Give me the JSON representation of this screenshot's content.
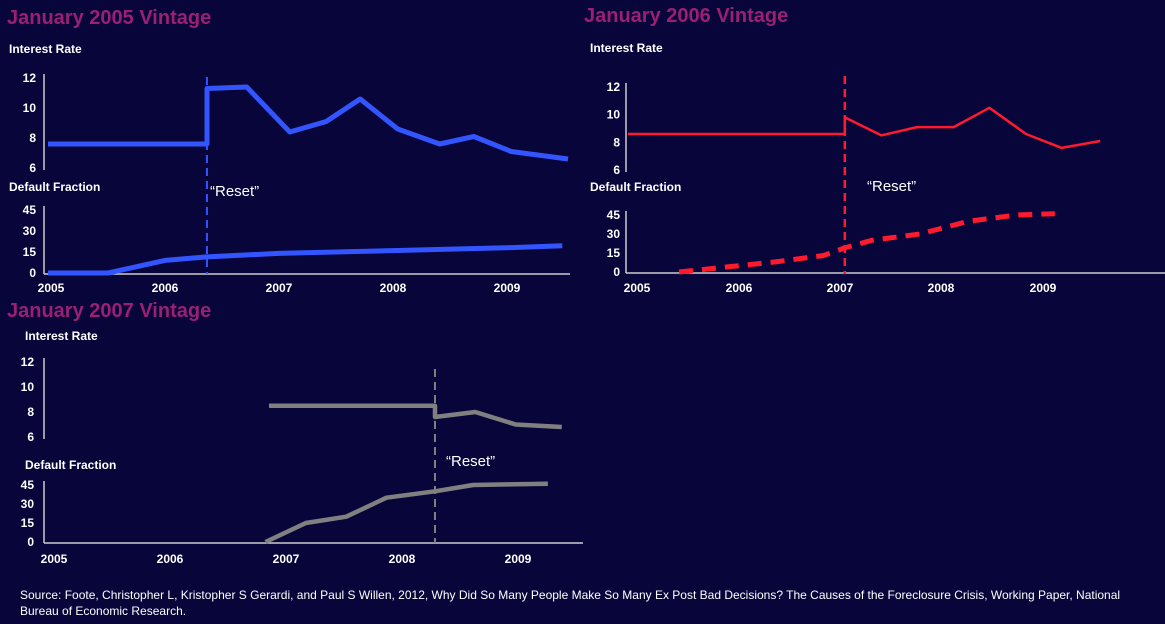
{
  "colors": {
    "background": "#07053a",
    "title": "#9b1f73",
    "c2005": "#3355ff",
    "c2006": "#ff1a2e",
    "c2007": "#808080"
  },
  "chart_data": [
    {
      "type": "line",
      "title": "January 2005 Vintage",
      "rate_label": "Interest Rate",
      "default_label": "Default Fraction",
      "annotation": "“Reset”",
      "reset_x": 2006.37,
      "x_ticks": [
        "2005",
        "2006",
        "2007",
        "2008",
        "2009"
      ],
      "rate_ticks": [
        "6",
        "8",
        "10",
        "12"
      ],
      "default_ticks": [
        "0",
        "15",
        "30",
        "45"
      ],
      "xlim": [
        2004.97,
        2009.55
      ],
      "rate_ylim": [
        6,
        12
      ],
      "default_ylim": [
        0,
        45
      ],
      "series": [
        {
          "name": "Interest Rate",
          "x": [
            2004.97,
            2006.37,
            2006.37,
            2006.72,
            2007.1,
            2007.42,
            2007.72,
            2008.05,
            2008.42,
            2008.72,
            2009.05,
            2009.55
          ],
          "y": [
            7.6,
            7.6,
            11.3,
            11.4,
            8.4,
            9.1,
            10.6,
            8.6,
            7.6,
            8.1,
            7.1,
            6.6
          ]
        },
        {
          "name": "Default Fraction",
          "x": [
            2004.97,
            2005.5,
            2006.0,
            2006.37,
            2007.0,
            2008.0,
            2009.0,
            2009.5
          ],
          "y": [
            0,
            0,
            9,
            11.5,
            14,
            16,
            18,
            19.5
          ]
        }
      ]
    },
    {
      "type": "line",
      "title": "January 2006 Vintage",
      "rate_label": "Interest Rate",
      "default_label": "Default Fraction",
      "annotation": "“Reset”",
      "reset_x": 2007.22,
      "x_ticks": [
        "2005",
        "2006",
        "2007",
        "2008",
        "2009"
      ],
      "rate_ticks": [
        "6",
        "8",
        "10",
        "12"
      ],
      "default_ticks": [
        "0",
        "15",
        "30",
        "45"
      ],
      "xlim": [
        2004.97,
        2010.2
      ],
      "rate_ylim": [
        6,
        12
      ],
      "default_ylim": [
        0,
        45
      ],
      "series": [
        {
          "name": "Interest Rate",
          "x": [
            2004.97,
            2007.22,
            2007.22,
            2007.6,
            2007.97,
            2008.35,
            2008.72,
            2009.1,
            2009.47,
            2009.87
          ],
          "y": [
            8.6,
            8.6,
            9.8,
            8.5,
            9.1,
            9.1,
            10.5,
            8.6,
            7.6,
            8.1
          ]
        },
        {
          "name": "Default Fraction",
          "x": [
            2005.5,
            2006.0,
            2006.5,
            2007.0,
            2007.22,
            2007.5,
            2008.0,
            2008.5,
            2009.0,
            2009.4
          ],
          "y": [
            0,
            4,
            8,
            13,
            19,
            25,
            30,
            40,
            45,
            46
          ]
        }
      ]
    },
    {
      "type": "line",
      "title": "January 2007 Vintage",
      "rate_label": "Interest Rate",
      "default_label": "Default Fraction",
      "annotation": "“Reset”",
      "reset_x": 2008.37,
      "x_ticks": [
        "2005",
        "2006",
        "2007",
        "2008",
        "2009"
      ],
      "rate_ticks": [
        "6",
        "8",
        "10",
        "12"
      ],
      "default_ticks": [
        "0",
        "15",
        "30",
        "45"
      ],
      "xlim": [
        2004.97,
        2009.55
      ],
      "rate_ylim": [
        6,
        12
      ],
      "default_ylim": [
        0,
        45
      ],
      "series": [
        {
          "name": "Interest Rate",
          "x": [
            2006.93,
            2008.37,
            2008.37,
            2008.72,
            2009.07,
            2009.47
          ],
          "y": [
            8.5,
            8.5,
            7.6,
            8.0,
            7.0,
            6.8
          ]
        },
        {
          "name": "Default Fraction",
          "x": [
            2006.9,
            2007.25,
            2007.6,
            2007.95,
            2008.37,
            2008.7,
            2009.0,
            2009.35
          ],
          "y": [
            0,
            15,
            20,
            35,
            40,
            45,
            45.5,
            46
          ]
        }
      ]
    }
  ],
  "source": "Source: Foote, Christopher L, Kristopher S Gerardi, and Paul S Willen, 2012, Why Did So Many People Make So Many Ex Post Bad Decisions? The Causes of the Foreclosure Crisis, Working Paper, National Bureau of Economic Research."
}
